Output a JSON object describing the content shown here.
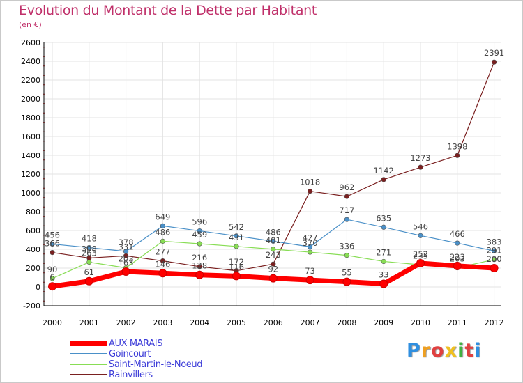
{
  "header": {
    "title": "Evolution du Montant de la Dette par Habitant",
    "subtitle": "(en €)"
  },
  "brand": {
    "text": "Proxiti",
    "letters": [
      "P",
      "r",
      "o",
      "x",
      "i",
      "t",
      "i"
    ],
    "colors": [
      "#2f8fe0",
      "#f0a020",
      "#e04040",
      "#f0c020",
      "#40b040",
      "#e04040",
      "#2f8fe0"
    ]
  },
  "chart_data": {
    "type": "line",
    "title": "Evolution du Montant de la Dette par Habitant",
    "subtitle": "(en €)",
    "xlabel": "",
    "ylabel": "",
    "ylim": [
      -200,
      2600
    ],
    "yticks": [
      -200,
      0,
      200,
      400,
      600,
      800,
      1000,
      1200,
      1400,
      1600,
      1800,
      2000,
      2200,
      2400,
      2600
    ],
    "categories": [
      "2000",
      "2001",
      "2002",
      "2003",
      "2004",
      "2005",
      "2006",
      "2007",
      "2008",
      "2009",
      "2010",
      "2011",
      "2012"
    ],
    "grid": true,
    "legend_position": "bottom-left",
    "series": [
      {
        "name": "AUX MARAIS",
        "color": "#ff0000",
        "values": [
          6,
          61,
          163,
          146,
          128,
          116,
          92,
          73,
          55,
          33,
          252,
          223,
          200
        ],
        "labels": [
          "6",
          "61",
          "163",
          "146",
          "128",
          "116",
          "92",
          "73",
          "55",
          "33",
          "252",
          "223",
          "200"
        ]
      },
      {
        "name": "Goincourt",
        "color": "#4a90c8",
        "values": [
          456,
          418,
          378,
          649,
          596,
          542,
          486,
          427,
          717,
          635,
          546,
          466,
          383
        ],
        "labels": [
          "456",
          "418",
          "378",
          "649",
          "596",
          "542",
          "486",
          "427",
          "717",
          "635",
          "546",
          "466",
          "383"
        ]
      },
      {
        "name": "Saint-Martin-le-Noeud",
        "color": "#88dd55",
        "values": [
          90,
          263,
          203,
          486,
          459,
          431,
          401,
          370,
          336,
          271,
          235,
          203,
          291
        ],
        "labels": [
          "90",
          "263",
          "203",
          "486",
          "459",
          "431",
          "401",
          "370",
          "336",
          "271",
          "235",
          "203",
          "291"
        ]
      },
      {
        "name": "Rainvillers",
        "color": "#7a2020",
        "values": [
          366,
          308,
          331,
          277,
          216,
          172,
          243,
          1018,
          962,
          1142,
          1273,
          1398,
          2391
        ],
        "labels": [
          "366",
          "308",
          "331",
          "277",
          "216",
          "172",
          "243",
          "1018",
          "962",
          "1142",
          "1273",
          "1398",
          "2391"
        ]
      }
    ]
  }
}
